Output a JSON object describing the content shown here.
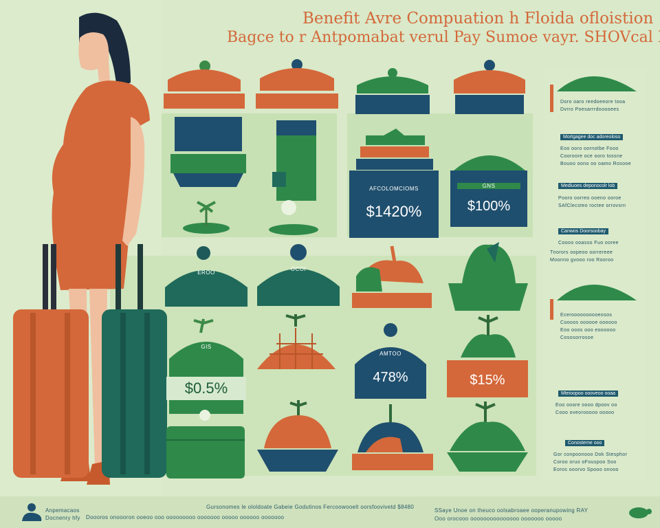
{
  "title": {
    "line1": "Benefit Avre Compuation h Floida ofloistion",
    "line2": "Bagce to r Antpomabat verul Pay Sumoe vayr. SHOVcal Pay"
  },
  "cards": {
    "row1_label1": "AFCOLOMCIOMS",
    "row1_price1": "$1420%",
    "row1_label2": "GNS",
    "row1_price2": "$100%",
    "row2_label1": "EROO",
    "row2_label2": "OCOI",
    "row3_label1": "GIS",
    "row3_price1": "$0.5%",
    "row3_label3": "AMTOO",
    "row3_price3": "478%",
    "row3_price4": "$15%"
  },
  "sidebar": {
    "headers": [
      "Mortgagee doc adoreoloso",
      "Mediuoes deponocolr lob",
      "Canwos Doorsoobay",
      "Mteioopoo oooveoo ooaa",
      "Conosteme ooo"
    ],
    "lines": [
      "Doro oaro reedoeeore tooa",
      "Dvrro Poesarrrdooooees",
      "Eoo ooro oornotbe Fooo",
      "Cooroore oce ooro tossne",
      "Bouoo oono oo oamo Rosooe",
      "Pooro oorreo ooeno ooroe",
      "SAfClecsteo roctee orrovsrn",
      "Coooo ooasso Fuo ooree",
      "Tnorors oopeoo oorrereee",
      "Moonno gvooo roo Rooroo",
      "Eceroooooooooeosos",
      "Coooos oooooe oooooo",
      "Eoo ooos ooo eoooooo",
      "Cososorrosoe",
      "Eoo ooore oooo dpoov oo",
      "Cooo oveorooooo ooooo",
      "Gor conpoonooo Dok Stesphor",
      "Coroo oruo oFouspoo Soo",
      "Eoros ooorvo Spooo onooo"
    ]
  },
  "footer": {
    "left_line1": "Anpemacaos",
    "left_line2": "Docnenry hfy",
    "center": "Gursonomes le ololdoate Gabeie Godutinos Fercoowooelt oorsfoovivetd $8480",
    "center2": "Doooros onoooron ooeoo ooo ooooooooo ooooooo ooooo oooooo ooooooo",
    "right": "SSaye Unoe on theuco oolsabroaee ooperanupowing RAY",
    "right2": "Ooo orocooo ooooooooooooooo ooooooo ooooo"
  },
  "colors": {
    "background": "#d9e9c9",
    "orange": "#d4683a",
    "green": "#2f8a4a",
    "navy": "#1f4f6e",
    "teal": "#1f6a5a"
  }
}
